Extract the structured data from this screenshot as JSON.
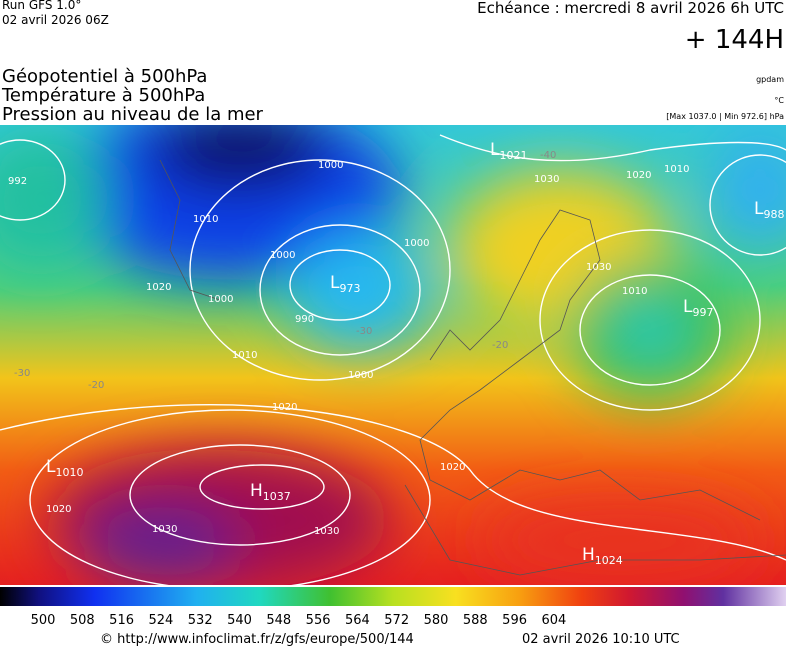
{
  "header": {
    "run": "Run GFS 1.0°",
    "run_date": "02 avril 2026 06Z",
    "valid": "Echéance : mercredi 8 avril 2026 6h UTC",
    "lead": "+ 144H"
  },
  "titles": [
    "Géopotentiel à 500hPa",
    "Température à 500hPa",
    "Pression au niveau de la mer"
  ],
  "units": {
    "geopotential": "gpdam",
    "temperature": "°C",
    "pressure": "[Max 1037.0 | Min 972.6] hPa"
  },
  "centers": [
    {
      "letter": "L",
      "value": "1021"
    },
    {
      "letter": "L",
      "value": "988"
    },
    {
      "letter": "L",
      "value": "997"
    },
    {
      "letter": "L",
      "value": "973"
    },
    {
      "letter": "L",
      "value": "1010"
    },
    {
      "letter": "H",
      "value": "1037"
    },
    {
      "letter": "H",
      "value": "1024"
    }
  ],
  "isobar_labels": [
    "992",
    "1000",
    "1010",
    "1000",
    "1000",
    "1020",
    "1000",
    "990",
    "1010",
    "1000",
    "1020",
    "1030",
    "1020",
    "1010",
    "1030",
    "1010",
    "1020",
    "1030",
    "1030",
    "1020"
  ],
  "temperature_labels": [
    "-40",
    "-30",
    "-20",
    "-20",
    "-30"
  ],
  "colorbar": {
    "ticks": [
      500,
      508,
      516,
      524,
      532,
      540,
      548,
      556,
      564,
      572,
      580,
      588,
      596,
      604
    ]
  },
  "footer": {
    "source": "© http://www.infoclimat.fr/z/gfs/europe/500/144",
    "generated": "02 avril 2026 10:10 UTC"
  }
}
